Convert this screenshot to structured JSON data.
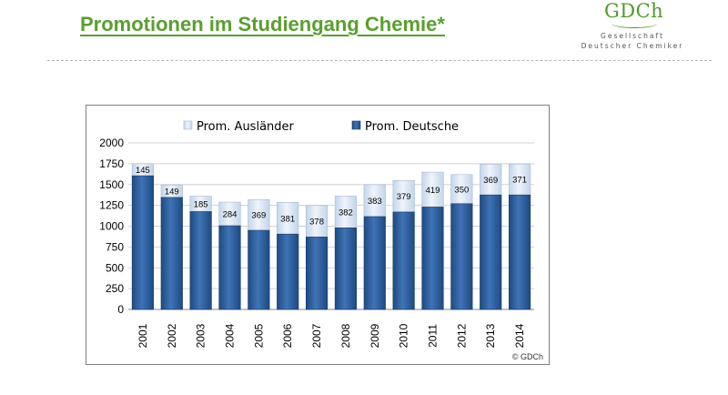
{
  "slide": {
    "title": "Promotionen im Studiengang Chemie*"
  },
  "logo": {
    "mark": "GDCh",
    "line1": "Gesellschaft",
    "line2": "Deutscher Chemiker"
  },
  "chart_data": {
    "type": "bar",
    "stacked": true,
    "categories": [
      "2001",
      "2002",
      "2003",
      "2004",
      "2005",
      "2006",
      "2007",
      "2008",
      "2009",
      "2010",
      "2011",
      "2012",
      "2013",
      "2014"
    ],
    "series": [
      {
        "name": "Prom. Deutsche",
        "color": "#2f5f9c",
        "values": [
          1605,
          1345,
          1175,
          1005,
          950,
          905,
          870,
          980,
          1115,
          1170,
          1230,
          1270,
          1375,
          1375
        ]
      },
      {
        "name": "Prom. Ausländer",
        "color": "#d9e6f5",
        "values": [
          145,
          149,
          185,
          284,
          369,
          381,
          378,
          382,
          383,
          379,
          419,
          350,
          369,
          371
        ]
      }
    ],
    "data_labels": [
      "145",
      "149",
      "185",
      "284",
      "369",
      "381",
      "378",
      "382",
      "383",
      "379",
      "419",
      "350",
      "369",
      "371"
    ],
    "ylim": [
      0,
      2000
    ],
    "yticks": [
      0,
      250,
      500,
      750,
      1000,
      1250,
      1500,
      1750,
      2000
    ],
    "grid": true,
    "legend_position": "top",
    "legend": [
      "Prom. Ausländer",
      "Prom. Deutsche"
    ],
    "xlabel": "",
    "ylabel": "",
    "source": "© GDCh"
  }
}
